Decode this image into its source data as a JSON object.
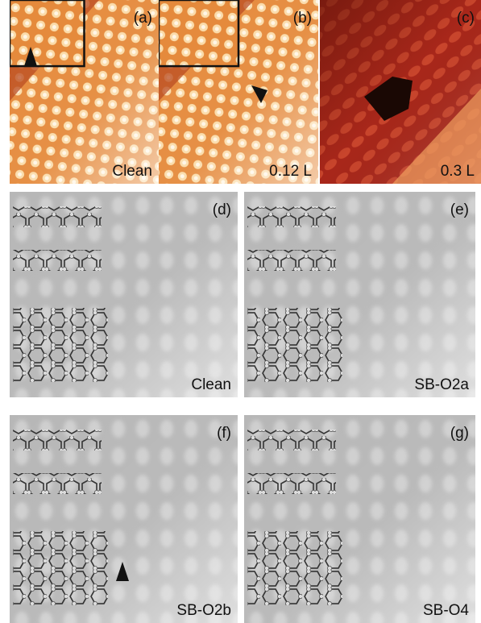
{
  "panels": [
    {
      "label": "(a)",
      "caption": "Clean"
    },
    {
      "label": "(b)",
      "caption": "0.12 L"
    },
    {
      "label": "(c)",
      "caption": "0.3 L"
    },
    {
      "label": "(d)",
      "caption": "Clean"
    },
    {
      "label": "(e)",
      "caption": "SB-O2a"
    },
    {
      "label": "(f)",
      "caption": "SB-O2b"
    },
    {
      "label": "(g)",
      "caption": "SB-O4"
    }
  ]
}
